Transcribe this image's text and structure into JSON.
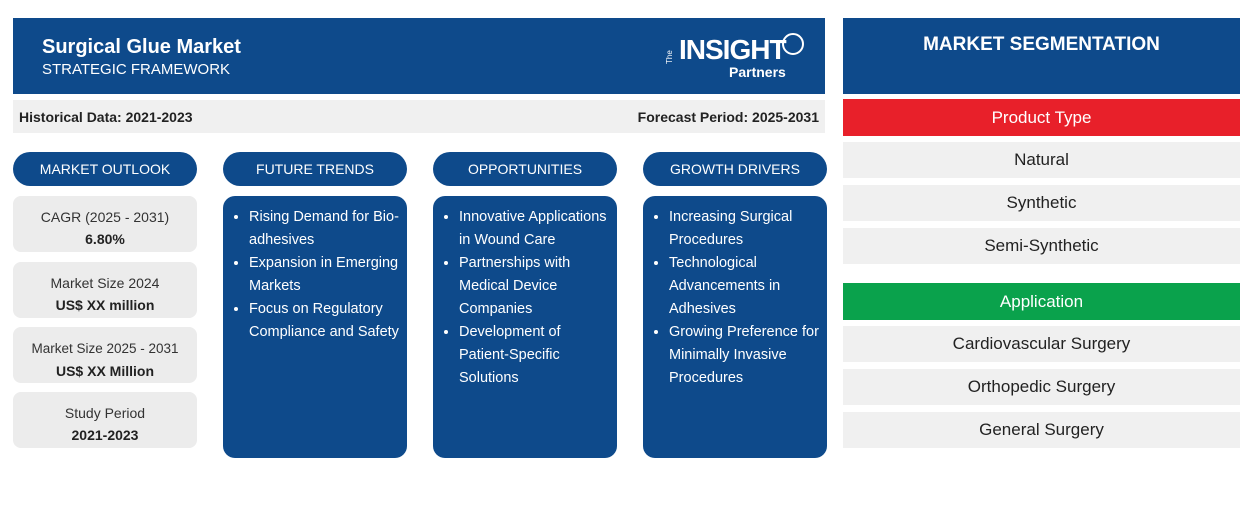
{
  "header": {
    "title": "Surgical Glue Market",
    "subtitle": "STRATEGIC FRAMEWORK",
    "logo": {
      "prefix": "The",
      "name": "INSIGHT",
      "suffix": "Partners"
    }
  },
  "periods": {
    "historical": "Historical Data: 2021-2023",
    "forecast": "Forecast Period: 2025-2031"
  },
  "market_outlook": {
    "heading": "MARKET OUTLOOK",
    "items": [
      {
        "label": "CAGR (2025 - 2031)",
        "value": "6.80%"
      },
      {
        "label": "Market Size 2024",
        "value": "US$ XX million"
      },
      {
        "label": "Market Size 2025 - 2031",
        "value": "US$ XX Million"
      },
      {
        "label": "Study Period",
        "value": "2021-2023"
      }
    ]
  },
  "columns": [
    {
      "heading": "FUTURE TRENDS",
      "items": [
        "Rising Demand for Bio-adhesives",
        "Expansion in Emerging Markets",
        "Focus on Regulatory Compliance and Safety"
      ]
    },
    {
      "heading": "OPPORTUNITIES",
      "items": [
        "Innovative Applications in Wound Care",
        "Partnerships with Medical Device Companies",
        "Development of Patient-Specific Solutions"
      ]
    },
    {
      "heading": "GROWTH DRIVERS",
      "items": [
        "Increasing Surgical Procedures",
        "Technological Advancements in Adhesives",
        "Growing Preference for Minimally Invasive Procedures"
      ]
    }
  ],
  "segmentation": {
    "title": "MARKET SEGMENTATION",
    "groups": [
      {
        "name": "Product Type",
        "items": [
          "Natural",
          "Synthetic",
          "Semi-Synthetic"
        ]
      },
      {
        "name": "Application",
        "items": [
          "Cardiovascular Surgery",
          "Orthopedic Surgery",
          "General Surgery"
        ]
      }
    ]
  }
}
